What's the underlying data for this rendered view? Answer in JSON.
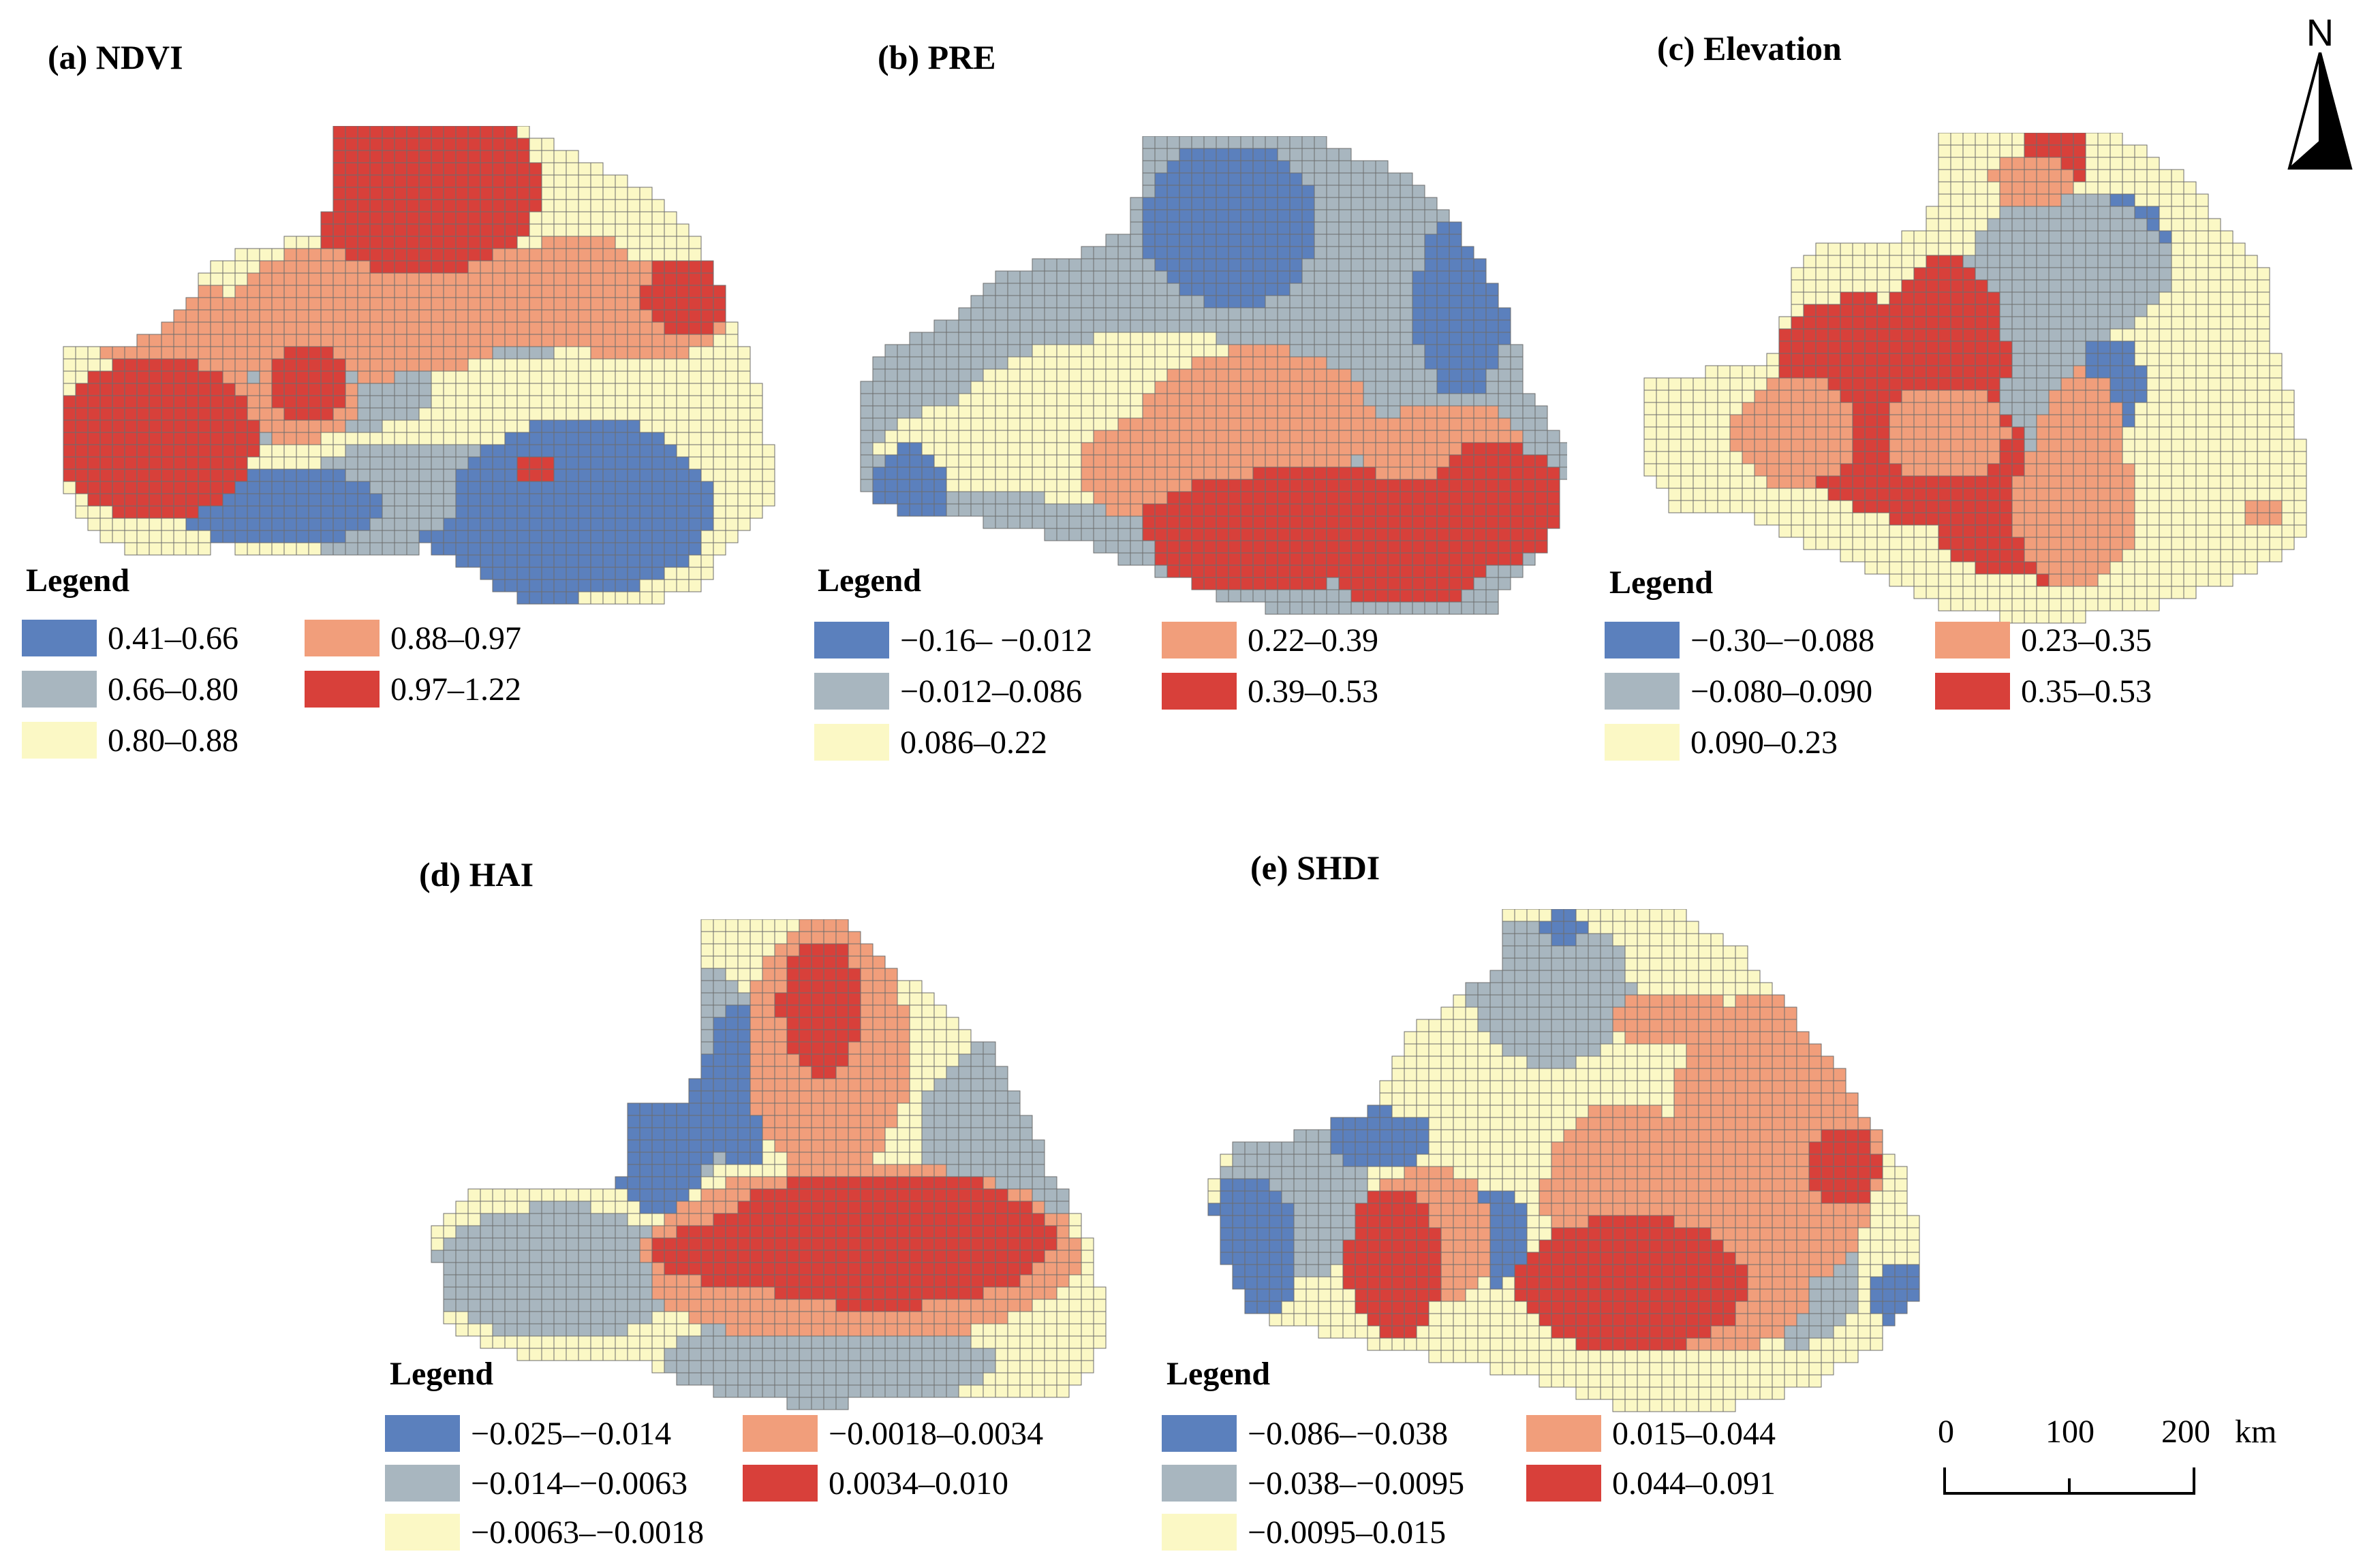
{
  "colors": {
    "c1": "#5b80bd",
    "c2": "#a8b6bf",
    "c3": "#fbf8c5",
    "c4": "#f19e7b",
    "c5": "#d8403a",
    "grid": "#6d6d6d"
  },
  "panels": [
    {
      "id": "a",
      "title": "(a) NDVI",
      "legend_title": "Legend",
      "classes": [
        "0.41–0.66",
        "0.66–0.80",
        "0.80–0.88",
        "0.88–0.97",
        "0.97–1.22"
      ]
    },
    {
      "id": "b",
      "title": "(b) PRE",
      "legend_title": "Legend",
      "classes": [
        "−0.16– −0.012",
        "−0.012–0.086",
        "0.086–0.22",
        "0.22–0.39",
        "0.39–0.53"
      ]
    },
    {
      "id": "c",
      "title": "(c) Elevation",
      "legend_title": "Legend",
      "classes": [
        "−0.30–−0.088",
        "−0.080–0.090",
        "0.090–0.23",
        "0.23–0.35",
        "0.35–0.53"
      ]
    },
    {
      "id": "d",
      "title": "(d) HAI",
      "legend_title": "Legend",
      "classes": [
        "−0.025–−0.014",
        "−0.014–−0.0063",
        "−0.0063–−0.0018",
        "−0.0018–0.0034",
        "0.0034–0.010"
      ]
    },
    {
      "id": "e",
      "title": "(e) SHDI",
      "legend_title": "Legend",
      "classes": [
        "−0.086–−0.038",
        "−0.038–−0.0095",
        "−0.0095–0.015",
        "0.015–0.044",
        "0.044–0.091"
      ]
    }
  ],
  "north_arrow": {
    "label": "N"
  },
  "scale_bar": {
    "ticks": [
      "0",
      "100",
      "200"
    ],
    "unit": "km"
  }
}
